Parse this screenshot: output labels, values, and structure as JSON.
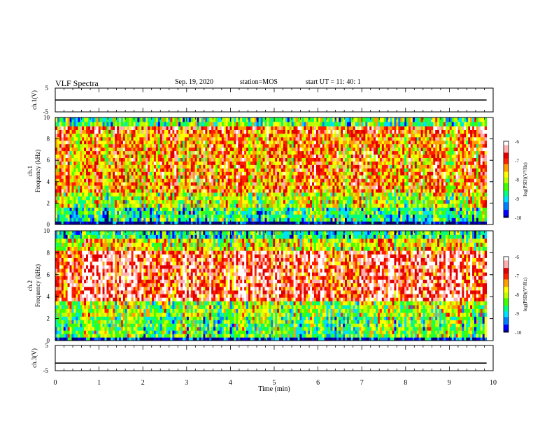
{
  "header": {
    "title": "VLF Spectra",
    "date": "Sep. 19, 2020",
    "station": "station=MOS",
    "start": "start UT =  11: 40: 1"
  },
  "chart_data": [
    {
      "type": "line",
      "panel": "ch1-waveform",
      "title": "",
      "ylabel": "ch.1(V)",
      "xlabel": "",
      "xlim": [
        0,
        10
      ],
      "ylim": [
        -5,
        5
      ],
      "yticks": [
        "5",
        "-5"
      ],
      "series": [
        {
          "values": [
            [
              0,
              0
            ],
            [
              9.85,
              0
            ]
          ]
        }
      ],
      "note_values": "constant near 0 V across 0-9.85 min"
    },
    {
      "type": "heatmap",
      "panel": "ch1-spectrogram",
      "ylabel_line1": "ch.1",
      "ylabel_line2": "Frequency (kHz)",
      "xlim": [
        0,
        10
      ],
      "ylim": [
        0,
        10
      ],
      "yticks": [
        "0",
        "2",
        "4",
        "6",
        "8",
        "10"
      ],
      "data_end_min": 9.85,
      "colorbar": {
        "label": "log(PSD)(V²/Hz)",
        "range": [
          -10,
          -6
        ],
        "ticks": [
          "-6",
          "-7",
          "-8",
          "-9",
          "-10"
        ]
      },
      "bands": [
        {
          "f_min": 0,
          "f_max": 0.3,
          "level": -10.0
        },
        {
          "f_min": 0.3,
          "f_max": 1.6,
          "level": -8.6
        },
        {
          "f_min": 1.6,
          "f_max": 3.0,
          "level": -7.9
        },
        {
          "f_min": 3.0,
          "f_max": 8.5,
          "level": -7.2
        },
        {
          "f_min": 8.5,
          "f_max": 9.2,
          "level": -6.9
        },
        {
          "f_min": 9.2,
          "f_max": 10.0,
          "level": -8.3
        }
      ]
    },
    {
      "type": "heatmap",
      "panel": "ch2-spectrogram",
      "ylabel_line1": "ch.2",
      "ylabel_line2": "Frequency (kHz)",
      "xlim": [
        0,
        10
      ],
      "ylim": [
        0,
        10
      ],
      "yticks": [
        "0",
        "2",
        "4",
        "6",
        "8",
        "10"
      ],
      "data_end_min": 9.85,
      "colorbar": {
        "label": "log(PSD)(V²/Hz)",
        "range": [
          -10,
          -6
        ],
        "ticks": [
          "-6",
          "-7",
          "-8",
          "-9",
          "-10"
        ]
      },
      "bands": [
        {
          "f_min": 0,
          "f_max": 0.3,
          "level": -9.7
        },
        {
          "f_min": 0.3,
          "f_max": 2.2,
          "level": -8.3
        },
        {
          "f_min": 2.2,
          "f_max": 3.6,
          "level": -8.0
        },
        {
          "f_min": 3.6,
          "f_max": 8.2,
          "level": -6.6
        },
        {
          "f_min": 8.2,
          "f_max": 9.3,
          "level": -7.7
        },
        {
          "f_min": 9.3,
          "f_max": 10.0,
          "level": -8.7
        }
      ]
    },
    {
      "type": "line",
      "panel": "ch3-waveform",
      "title": "",
      "ylabel": "ch.3(V)",
      "xlabel": "Time (min)",
      "xlim": [
        0,
        10
      ],
      "ylim": [
        -5,
        5
      ],
      "yticks": [
        "5",
        "-5"
      ],
      "xticks": [
        "0",
        "1",
        "2",
        "3",
        "4",
        "5",
        "6",
        "7",
        "8",
        "9",
        "10"
      ],
      "series": [
        {
          "values": [
            [
              0,
              -2
            ],
            [
              9.85,
              -2
            ]
          ]
        }
      ]
    }
  ],
  "colors": {
    "scale": [
      "#000080",
      "#0000ff",
      "#0080ff",
      "#00e0ff",
      "#00ff80",
      "#40ff00",
      "#c0ff00",
      "#ffff00",
      "#ffa000",
      "#ff2000",
      "#e00000",
      "#ffb0b0",
      "#ffffff"
    ]
  }
}
